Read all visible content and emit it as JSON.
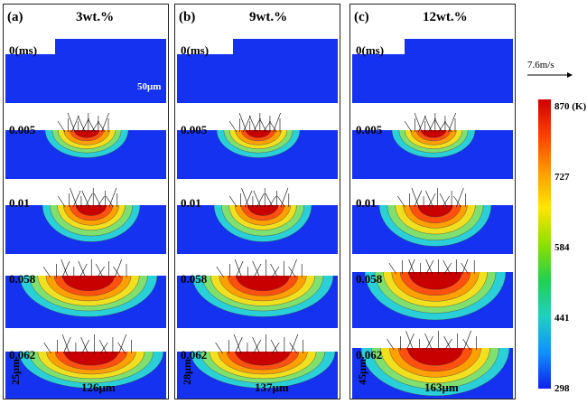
{
  "panels": [
    {
      "label": "(a)",
      "concentration": "3wt.%",
      "frames": [
        {
          "time": "0(ms)"
        },
        {
          "time": "0.005"
        },
        {
          "time": "0.01"
        },
        {
          "time": "0.058"
        },
        {
          "time": "0.062"
        }
      ],
      "scale_bar": "50μm",
      "depth": "25μm",
      "width": "126μm"
    },
    {
      "label": "(b)",
      "concentration": "9wt.%",
      "frames": [
        {
          "time": "0(ms)"
        },
        {
          "time": "0.005"
        },
        {
          "time": "0.01"
        },
        {
          "time": "0.058"
        },
        {
          "time": "0.062"
        }
      ],
      "depth": "28μm",
      "width": "137μm"
    },
    {
      "label": "(c)",
      "concentration": "12wt.%",
      "frames": [
        {
          "time": "0(ms)"
        },
        {
          "time": "0.005"
        },
        {
          "time": "0.01"
        },
        {
          "time": "0.058"
        },
        {
          "time": "0.062"
        }
      ],
      "depth": "45μm",
      "width": "163μm"
    }
  ],
  "velocity_label": "7.6m/s",
  "colorbar": {
    "ticks": [
      "870 (K)",
      "727",
      "584",
      "441",
      "298"
    ],
    "colors": [
      "#d00000",
      "#ff4000",
      "#ff9a00",
      "#ffe600",
      "#8fe000",
      "#20d050",
      "#20d0c0",
      "#1090ff",
      "#1020f0"
    ]
  }
}
